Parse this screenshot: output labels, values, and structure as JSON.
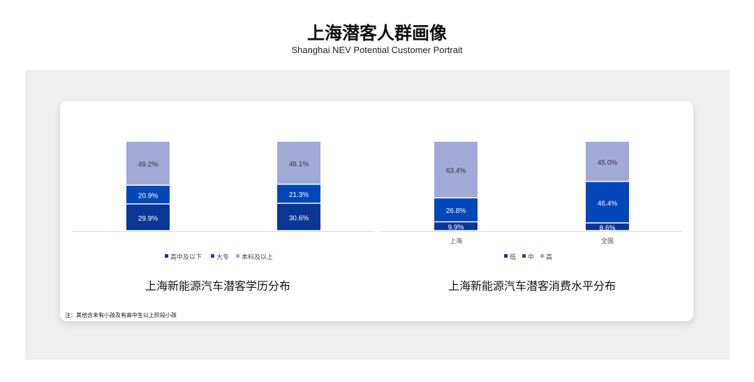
{
  "header": {
    "title": "上海潜客人群画像",
    "subtitle": "Shanghai NEV Potential Customer Portrait"
  },
  "note": "注：其他含未有小孩及有高中生以上阶段小孩",
  "colors": {
    "dark": "#0a3795",
    "mid": "#0447b9",
    "light": "#a1a9d7"
  },
  "chart_data": [
    {
      "type": "bar",
      "stacked": true,
      "title": "上海新能源汽车潜客学历分布",
      "categories": [
        "",
        ""
      ],
      "series": [
        {
          "name": "高中及以下",
          "values": [
            29.9,
            30.6
          ]
        },
        {
          "name": "大专",
          "values": [
            20.9,
            21.3
          ]
        },
        {
          "name": "本科及以上",
          "values": [
            49.2,
            48.1
          ]
        }
      ],
      "labels": [
        [
          "29.9%",
          "30.6%"
        ],
        [
          "20.9%",
          "21.3%"
        ],
        [
          "49.2%",
          "48.1%"
        ]
      ],
      "legend": "bottom"
    },
    {
      "type": "bar",
      "stacked": true,
      "title": "上海新能源汽车潜客消费水平分布",
      "categories": [
        "上海",
        "全国"
      ],
      "series": [
        {
          "name": "低",
          "values": [
            9.9,
            8.6
          ]
        },
        {
          "name": "中",
          "values": [
            26.8,
            46.4
          ]
        },
        {
          "name": "高",
          "values": [
            63.4,
            45.0
          ]
        }
      ],
      "labels": [
        [
          "9.9%",
          "8.6%"
        ],
        [
          "26.8%",
          "46.4%"
        ],
        [
          "63.4%",
          "45.0%"
        ]
      ],
      "legend": "bottom"
    }
  ]
}
